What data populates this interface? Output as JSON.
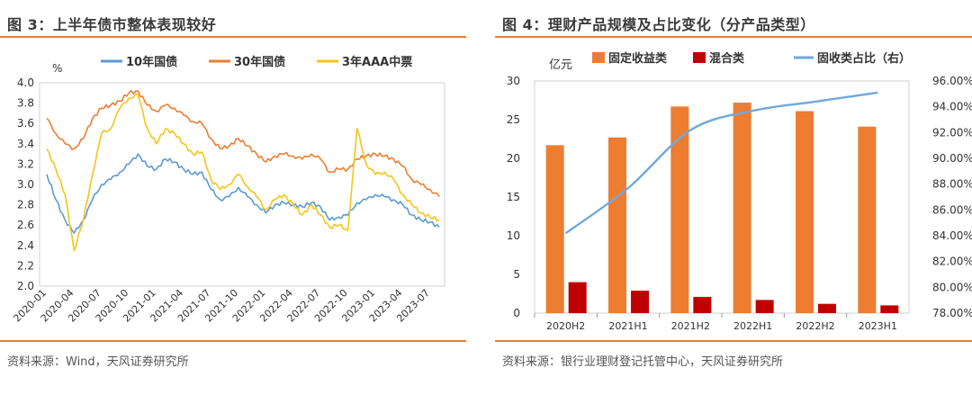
{
  "left": {
    "title": "图 3：上半年债市整体表现较好",
    "source": "资料来源：Wind，天风证券研究所",
    "chart_data": {
      "type": "line",
      "y_unit_label": "%",
      "ylim": [
        2.0,
        4.0
      ],
      "y_ticks": [
        "2.0",
        "2.2",
        "2.4",
        "2.6",
        "2.8",
        "3.0",
        "3.2",
        "3.4",
        "3.6",
        "3.8",
        "4.0"
      ],
      "x_ticks": [
        "2020-01",
        "2020-04",
        "2020-07",
        "2020-10",
        "2021-01",
        "2021-04",
        "2021-07",
        "2021-10",
        "2022-01",
        "2022-04",
        "2022-07",
        "2022-10",
        "2023-01",
        "2023-04",
        "2023-07"
      ],
      "legend_position": "top",
      "grid": false,
      "series": [
        {
          "name": "10年国债",
          "color": "#5B9BD5",
          "points": [
            [
              "2020-01",
              3.1
            ],
            [
              "2020-02",
              2.85
            ],
            [
              "2020-03",
              2.65
            ],
            [
              "2020-04",
              2.52
            ],
            [
              "2020-05",
              2.65
            ],
            [
              "2020-06",
              2.85
            ],
            [
              "2020-07",
              3.0
            ],
            [
              "2020-08",
              3.05
            ],
            [
              "2020-09",
              3.12
            ],
            [
              "2020-10",
              3.2
            ],
            [
              "2020-11",
              3.3
            ],
            [
              "2020-12",
              3.18
            ],
            [
              "2021-01",
              3.15
            ],
            [
              "2021-02",
              3.25
            ],
            [
              "2021-03",
              3.22
            ],
            [
              "2021-04",
              3.15
            ],
            [
              "2021-05",
              3.1
            ],
            [
              "2021-06",
              3.12
            ],
            [
              "2021-07",
              2.95
            ],
            [
              "2021-08",
              2.85
            ],
            [
              "2021-09",
              2.88
            ],
            [
              "2021-10",
              2.97
            ],
            [
              "2021-11",
              2.88
            ],
            [
              "2021-12",
              2.8
            ],
            [
              "2022-01",
              2.72
            ],
            [
              "2022-02",
              2.8
            ],
            [
              "2022-03",
              2.82
            ],
            [
              "2022-04",
              2.8
            ],
            [
              "2022-05",
              2.78
            ],
            [
              "2022-06",
              2.82
            ],
            [
              "2022-07",
              2.78
            ],
            [
              "2022-08",
              2.65
            ],
            [
              "2022-09",
              2.68
            ],
            [
              "2022-10",
              2.7
            ],
            [
              "2022-11",
              2.82
            ],
            [
              "2022-12",
              2.85
            ],
            [
              "2023-01",
              2.9
            ],
            [
              "2023-02",
              2.88
            ],
            [
              "2023-03",
              2.85
            ],
            [
              "2023-04",
              2.8
            ],
            [
              "2023-05",
              2.7
            ],
            [
              "2023-06",
              2.65
            ],
            [
              "2023-07",
              2.63
            ],
            [
              "2023-08",
              2.58
            ]
          ]
        },
        {
          "name": "30年国债",
          "color": "#ED7D31",
          "points": [
            [
              "2020-01",
              3.65
            ],
            [
              "2020-02",
              3.5
            ],
            [
              "2020-03",
              3.4
            ],
            [
              "2020-04",
              3.35
            ],
            [
              "2020-05",
              3.45
            ],
            [
              "2020-06",
              3.65
            ],
            [
              "2020-07",
              3.75
            ],
            [
              "2020-08",
              3.78
            ],
            [
              "2020-09",
              3.82
            ],
            [
              "2020-10",
              3.9
            ],
            [
              "2020-11",
              3.92
            ],
            [
              "2020-12",
              3.78
            ],
            [
              "2021-01",
              3.72
            ],
            [
              "2021-02",
              3.78
            ],
            [
              "2021-03",
              3.75
            ],
            [
              "2021-04",
              3.68
            ],
            [
              "2021-05",
              3.62
            ],
            [
              "2021-06",
              3.6
            ],
            [
              "2021-07",
              3.45
            ],
            [
              "2021-08",
              3.35
            ],
            [
              "2021-09",
              3.38
            ],
            [
              "2021-10",
              3.45
            ],
            [
              "2021-11",
              3.38
            ],
            [
              "2021-12",
              3.3
            ],
            [
              "2022-01",
              3.22
            ],
            [
              "2022-02",
              3.28
            ],
            [
              "2022-03",
              3.3
            ],
            [
              "2022-04",
              3.28
            ],
            [
              "2022-05",
              3.25
            ],
            [
              "2022-06",
              3.3
            ],
            [
              "2022-07",
              3.25
            ],
            [
              "2022-08",
              3.12
            ],
            [
              "2022-09",
              3.15
            ],
            [
              "2022-10",
              3.15
            ],
            [
              "2022-11",
              3.25
            ],
            [
              "2022-12",
              3.28
            ],
            [
              "2023-01",
              3.3
            ],
            [
              "2023-02",
              3.28
            ],
            [
              "2023-03",
              3.25
            ],
            [
              "2023-04",
              3.18
            ],
            [
              "2023-05",
              3.05
            ],
            [
              "2023-06",
              3.0
            ],
            [
              "2023-07",
              2.95
            ],
            [
              "2023-08",
              2.88
            ]
          ]
        },
        {
          "name": "3年AAA中票",
          "color": "#F5C518",
          "points": [
            [
              "2020-01",
              3.35
            ],
            [
              "2020-02",
              3.15
            ],
            [
              "2020-03",
              2.9
            ],
            [
              "2020-04",
              2.35
            ],
            [
              "2020-05",
              2.65
            ],
            [
              "2020-06",
              3.1
            ],
            [
              "2020-07",
              3.5
            ],
            [
              "2020-08",
              3.55
            ],
            [
              "2020-09",
              3.75
            ],
            [
              "2020-10",
              3.85
            ],
            [
              "2020-11",
              3.88
            ],
            [
              "2020-12",
              3.55
            ],
            [
              "2021-01",
              3.4
            ],
            [
              "2021-02",
              3.55
            ],
            [
              "2021-03",
              3.5
            ],
            [
              "2021-04",
              3.4
            ],
            [
              "2021-05",
              3.3
            ],
            [
              "2021-06",
              3.32
            ],
            [
              "2021-07",
              3.05
            ],
            [
              "2021-08",
              2.95
            ],
            [
              "2021-09",
              3.0
            ],
            [
              "2021-10",
              3.1
            ],
            [
              "2021-11",
              2.98
            ],
            [
              "2021-12",
              2.88
            ],
            [
              "2022-01",
              2.75
            ],
            [
              "2022-02",
              2.85
            ],
            [
              "2022-03",
              2.9
            ],
            [
              "2022-04",
              2.8
            ],
            [
              "2022-05",
              2.7
            ],
            [
              "2022-06",
              2.8
            ],
            [
              "2022-07",
              2.7
            ],
            [
              "2022-08",
              2.58
            ],
            [
              "2022-09",
              2.6
            ],
            [
              "2022-10",
              2.55
            ],
            [
              "2022-11",
              3.55
            ],
            [
              "2022-12",
              3.2
            ],
            [
              "2023-01",
              3.1
            ],
            [
              "2023-02",
              3.12
            ],
            [
              "2023-03",
              3.05
            ],
            [
              "2023-04",
              2.9
            ],
            [
              "2023-05",
              2.8
            ],
            [
              "2023-06",
              2.72
            ],
            [
              "2023-07",
              2.68
            ],
            [
              "2023-08",
              2.65
            ]
          ]
        }
      ]
    }
  },
  "right": {
    "title": "图 4：理财产品规模及占比变化（分产品类型）",
    "source": "资料来源：银行业理财登记托管中心，天风证券研究所",
    "chart_data": {
      "type": "bar",
      "categories": [
        "2020H2",
        "2021H1",
        "2021H2",
        "2022H1",
        "2022H2",
        "2023H1"
      ],
      "y_left_label": "亿元",
      "ylim_left": [
        0,
        30
      ],
      "y_left_ticks": [
        "0",
        "5",
        "10",
        "15",
        "20",
        "25",
        "30"
      ],
      "ylim_right": [
        0.78,
        0.96
      ],
      "y_right_ticks": [
        "78.00%",
        "80.00%",
        "82.00%",
        "84.00%",
        "86.00%",
        "88.00%",
        "90.00%",
        "92.00%",
        "94.00%",
        "96.00%"
      ],
      "legend_position": "top",
      "grid": false,
      "series": [
        {
          "name": "固定收益类",
          "type": "bar",
          "color": "#ED7D31",
          "values": [
            21.7,
            22.7,
            26.7,
            27.2,
            26.1,
            24.1
          ]
        },
        {
          "name": "混合类",
          "type": "bar",
          "color": "#C00000",
          "values": [
            4.0,
            2.9,
            2.1,
            1.7,
            1.2,
            1.0
          ]
        },
        {
          "name": "固收类占比（右）",
          "type": "line",
          "axis": "right",
          "color": "#6FA8DC",
          "values": [
            0.842,
            0.877,
            0.922,
            0.937,
            0.944,
            0.951
          ]
        }
      ]
    }
  }
}
